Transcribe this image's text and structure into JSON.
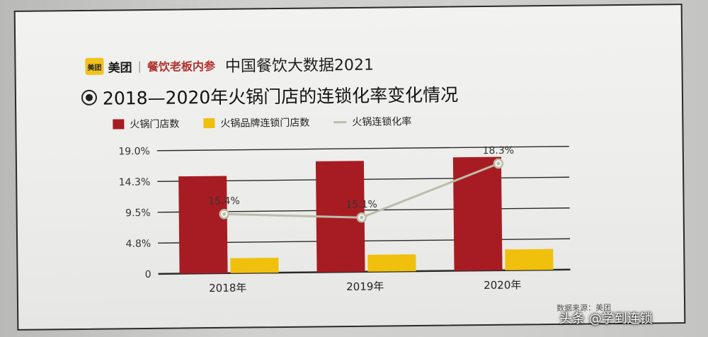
{
  "header": {
    "logo_mark": "美团",
    "logo_name": "美团",
    "separator": "|",
    "partner": "餐饮老板内参",
    "publication": "中国餐饮大数据2021"
  },
  "colors": {
    "store_count": "#a71c22",
    "chain_store_count": "#f0c00c",
    "chain_rate": "#bcbcab"
  },
  "chart_data": {
    "type": "bar",
    "title": "2018—2020年火锅门店的连锁化率变化情况",
    "categories": [
      "2018年",
      "2019年",
      "2020年"
    ],
    "series": [
      {
        "name": "火锅门店数",
        "type": "bar",
        "axis": "left",
        "values": [
          15.0,
          17.1,
          17.5
        ]
      },
      {
        "name": "火锅品牌连锁门店数",
        "type": "bar",
        "axis": "left",
        "values": [
          2.3,
          2.6,
          3.2
        ]
      },
      {
        "name": "火锅连锁化率",
        "type": "line",
        "axis": "right",
        "values": [
          15.4,
          15.1,
          18.3
        ],
        "labels": [
          "15.4%",
          "15.1%",
          "18.3%"
        ]
      }
    ],
    "yticks": [
      "0",
      "4.8%",
      "9.5%",
      "14.3%",
      "19.0%"
    ],
    "yrange": [
      0,
      19.0
    ],
    "rate_range": [
      11.8,
      19.3
    ],
    "legend_position": "top-left",
    "grid": true
  },
  "footnote": "数据来源：美团",
  "watermark": "头条 @学到连锁"
}
